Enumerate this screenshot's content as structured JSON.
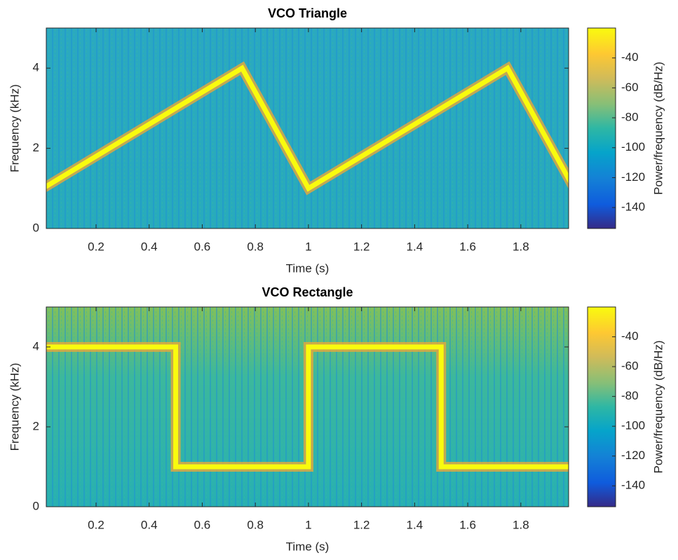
{
  "chart_data": [
    {
      "type": "spectrogram",
      "title": "VCO Triangle",
      "x_label": "Time (s)",
      "y_label": "Frequency (kHz)",
      "colorbar_label": "Power/frequency (dB/Hz)",
      "x": [
        0,
        0.75,
        1,
        1.75,
        2
      ],
      "values": [
        1,
        4,
        1,
        4,
        1
      ],
      "color": "#f9fb0e",
      "xlim": [
        0.0125,
        1.98
      ],
      "ylim": [
        0,
        5
      ],
      "xticks": [
        0.2,
        0.4,
        0.6,
        0.8,
        1,
        1.2,
        1.4,
        1.6,
        1.8
      ],
      "yticks": [
        0,
        2,
        4
      ],
      "clim": [
        -154,
        -20
      ],
      "cticks": [
        -140,
        -120,
        -100,
        -80,
        -60,
        -40
      ]
    },
    {
      "type": "spectrogram",
      "title": "VCO Rectangle",
      "x_label": "Time (s)",
      "y_label": "Frequency (kHz)",
      "colorbar_label": "Power/frequency (dB/Hz)",
      "x": [
        0,
        0.5,
        0.5,
        1,
        1,
        1.5,
        1.5,
        2
      ],
      "values": [
        4,
        4,
        1,
        1,
        4,
        4,
        1,
        1
      ],
      "color": "#f9fb0e",
      "xlim": [
        0.0125,
        1.98
      ],
      "ylim": [
        0,
        5
      ],
      "xticks": [
        0.2,
        0.4,
        0.6,
        0.8,
        1,
        1.2,
        1.4,
        1.6,
        1.8
      ],
      "yticks": [
        0,
        2,
        4
      ],
      "clim": [
        -154,
        -20
      ],
      "cticks": [
        -140,
        -120,
        -100,
        -80,
        -60,
        -40
      ]
    }
  ]
}
